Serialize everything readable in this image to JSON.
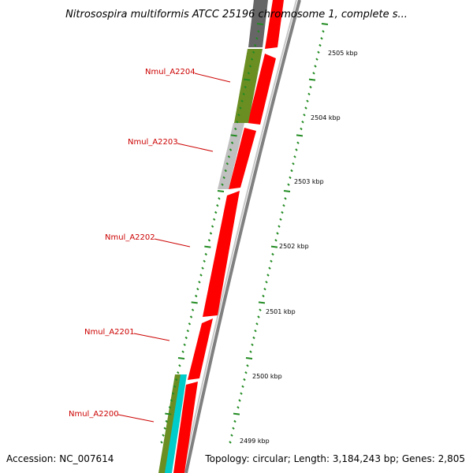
{
  "header": {
    "title": "Nitrosospira multiformis ATCC 25196 chromosome 1, complete s..."
  },
  "footer": {
    "accession": "Accession: NC_007614",
    "summary": "Topology: circular; Length: 3,184,243 bp; Genes: 2,805"
  },
  "genes": [
    {
      "name": "Nmul_A2204"
    },
    {
      "name": "Nmul_A2203"
    },
    {
      "name": "Nmul_A2202"
    },
    {
      "name": "Nmul_A2201"
    },
    {
      "name": "Nmul_A2200"
    }
  ],
  "ticks": [
    {
      "label": "2505 kbp"
    },
    {
      "label": "2504 kbp"
    },
    {
      "label": "2503 kbp"
    },
    {
      "label": "2502 kbp"
    },
    {
      "label": "2501 kbp"
    },
    {
      "label": "2500 kbp"
    },
    {
      "label": "2499 kbp"
    }
  ],
  "colors": {
    "cds": "#ff0000",
    "gene": "#6b8e23",
    "pseudo": "#c0c0c0",
    "dark": "#666666",
    "rna": "#00cccc",
    "tick": "#228b22",
    "label_line": "#cc0000",
    "backbone": "#808080"
  }
}
